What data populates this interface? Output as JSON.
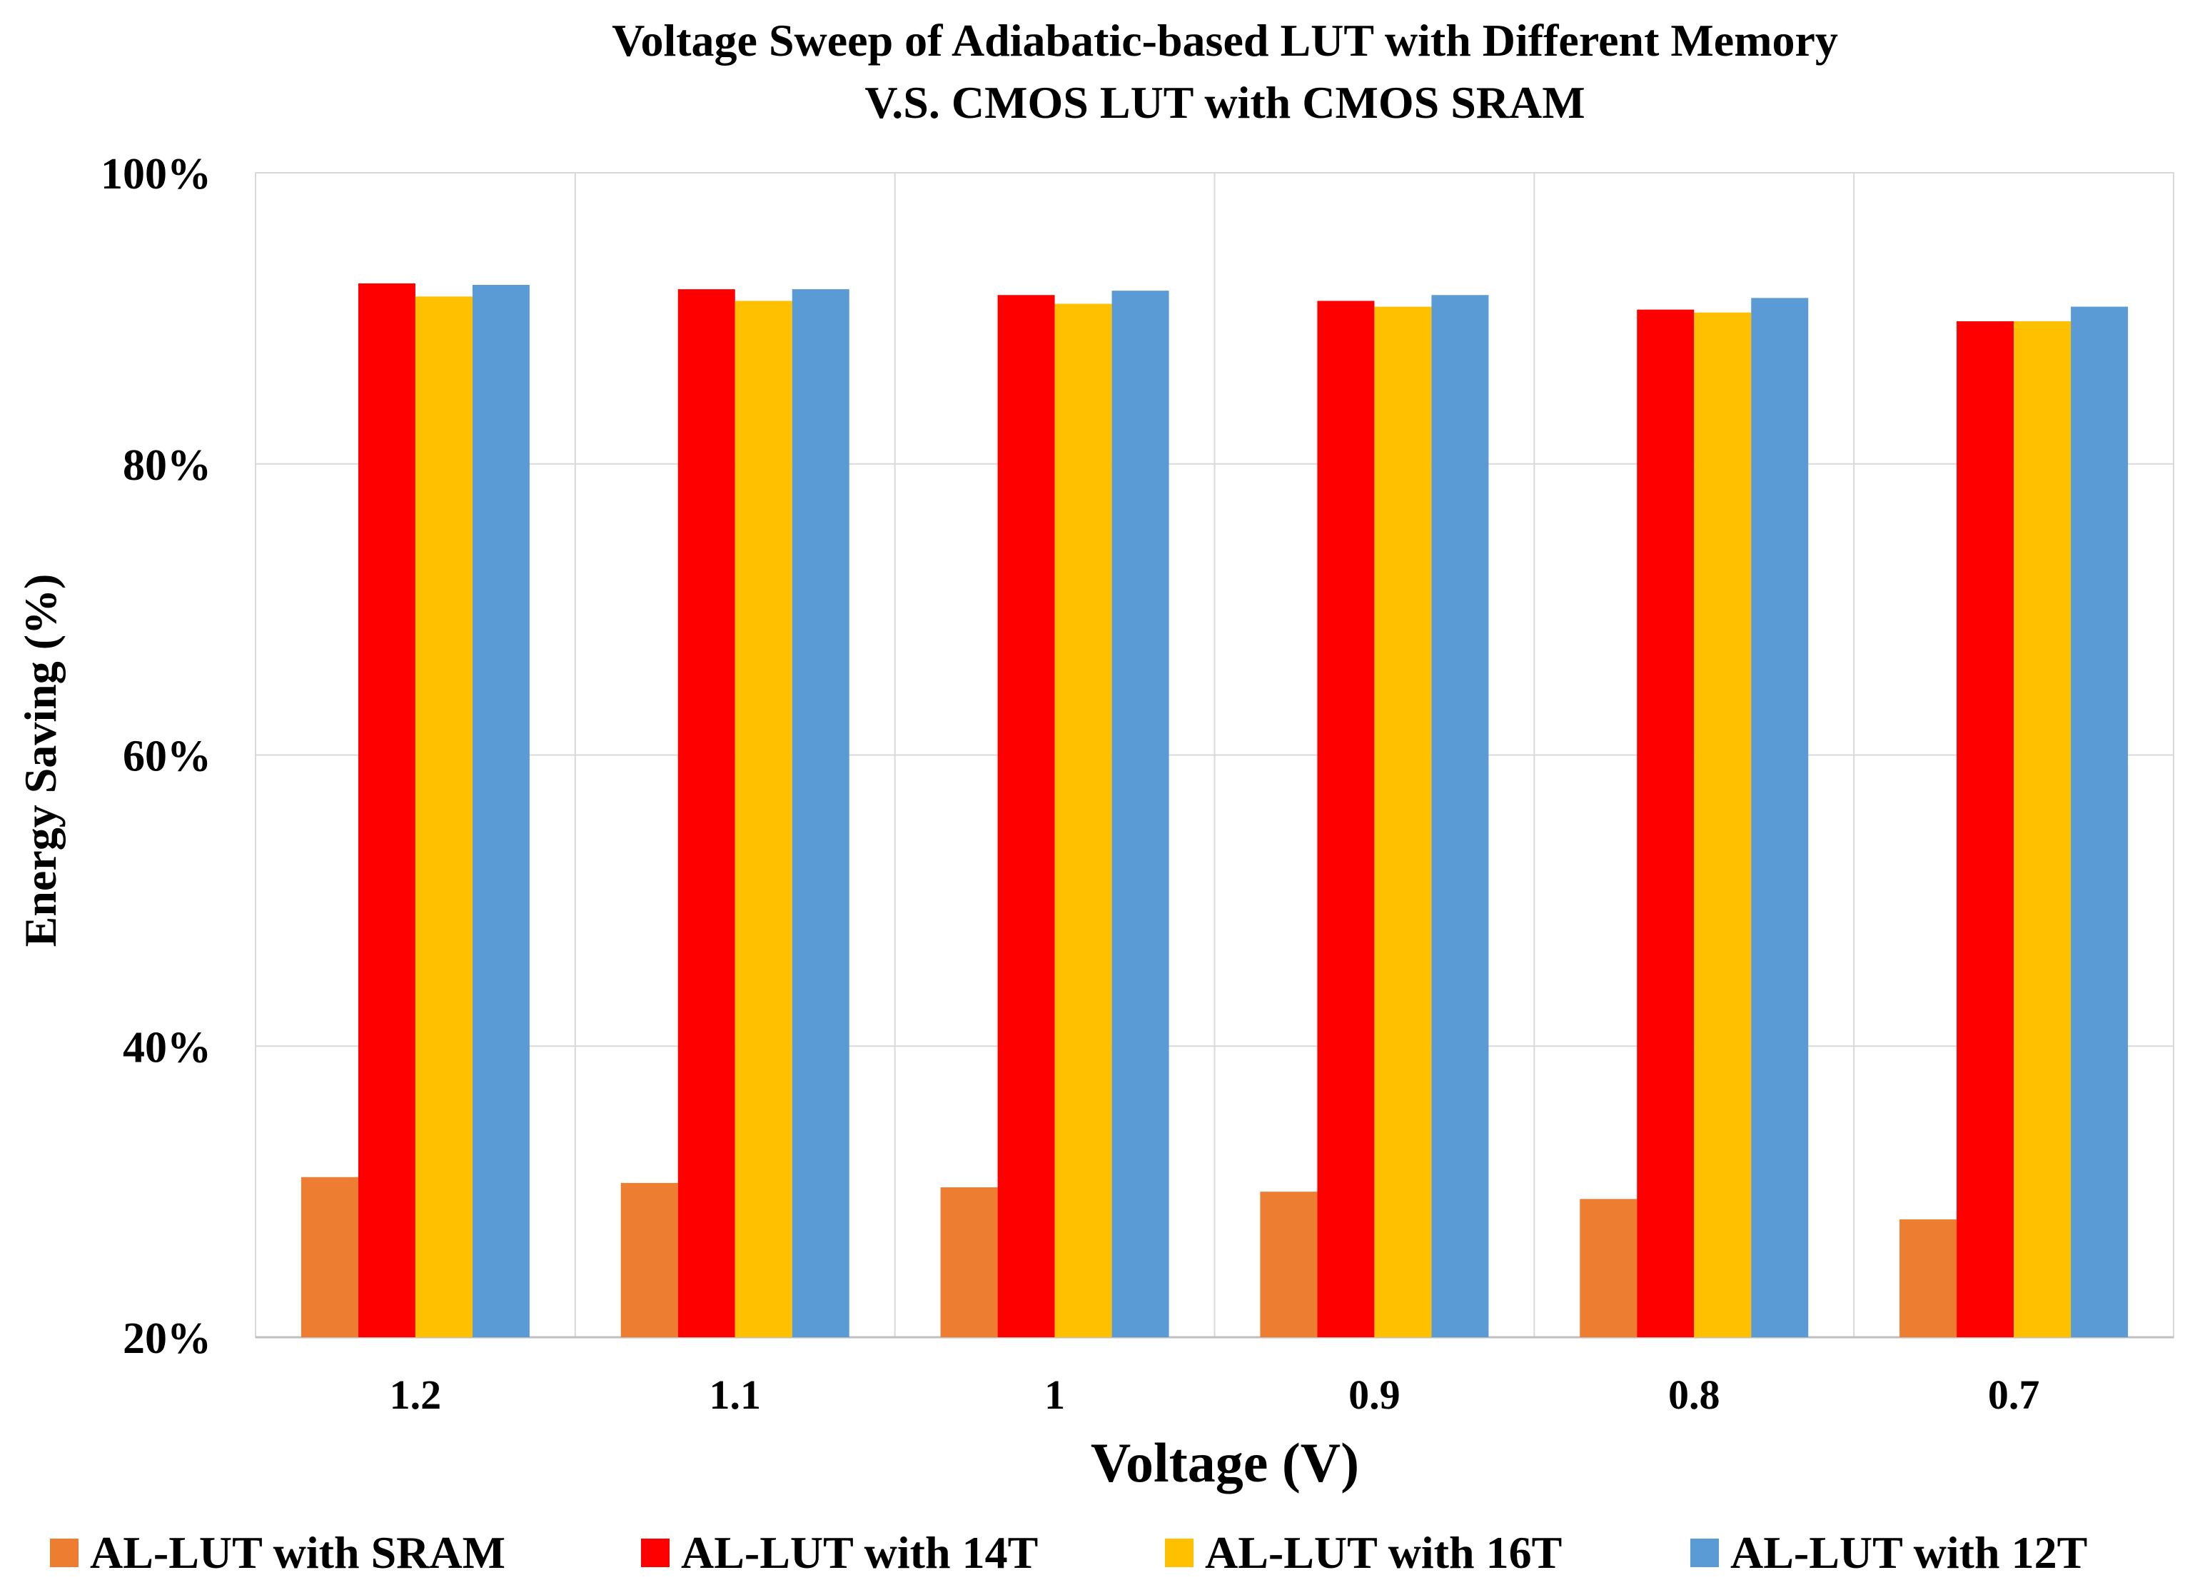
{
  "chart_data": {
    "type": "bar",
    "title": "Voltage Sweep of Adiabatic-based LUT with Different Memory",
    "subtitle": "V.S. CMOS LUT with CMOS SRAM",
    "xlabel": "Voltage (V)",
    "ylabel": "Energy Saving (%)",
    "categories": [
      "1.2",
      "1.1",
      "1",
      "0.9",
      "0.8",
      "0.7"
    ],
    "ylim": [
      20,
      100
    ],
    "yticks": [
      20,
      40,
      60,
      80,
      100
    ],
    "ytick_labels": [
      "20%",
      "40%",
      "60%",
      "80%",
      "100%"
    ],
    "grid": true,
    "legend_position": "bottom",
    "series": [
      {
        "name": "AL-LUT with SRAM",
        "color": "#ED7D31",
        "values": [
          31.0,
          30.6,
          30.3,
          30.0,
          29.5,
          28.1
        ]
      },
      {
        "name": "AL-LUT with 14T",
        "color": "#FF0000",
        "values": [
          92.4,
          92.0,
          91.6,
          91.2,
          90.6,
          89.8
        ]
      },
      {
        "name": "AL-LUT with 16T",
        "color": "#FFC000",
        "values": [
          91.5,
          91.2,
          91.0,
          90.8,
          90.4,
          89.8
        ]
      },
      {
        "name": "AL-LUT with 12T",
        "color": "#5B9BD5",
        "values": [
          92.3,
          92.0,
          91.9,
          91.6,
          91.4,
          90.8
        ]
      }
    ]
  }
}
